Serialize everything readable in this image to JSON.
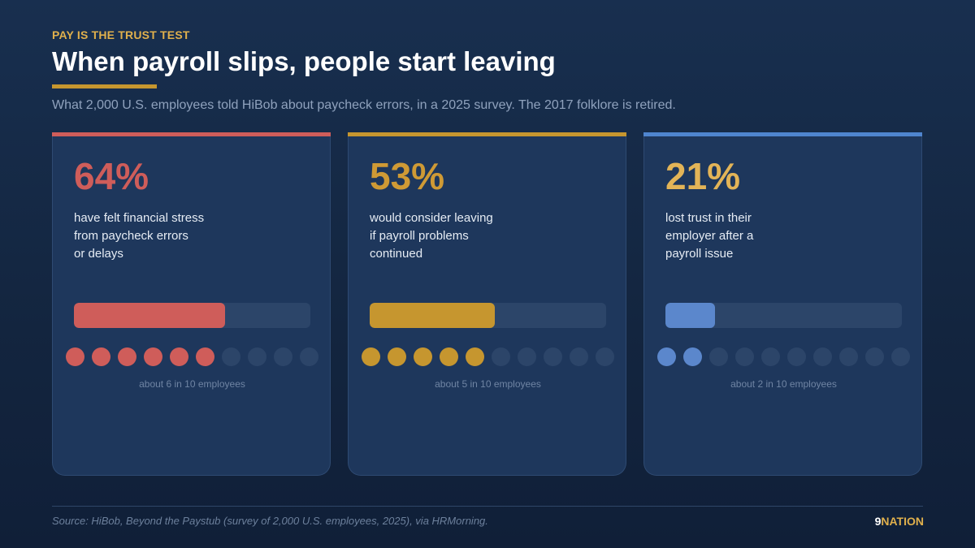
{
  "header": {
    "eyebrow": "PAY IS THE TRUST TEST",
    "title": "When payroll slips, people start leaving",
    "subtitle": "What 2,000 U.S. employees told HiBob about paycheck errors, in a 2025 survey. The 2017 folklore is retired."
  },
  "colors": {
    "background": "#152a48",
    "card": "#1e375c",
    "track": "#2c4569",
    "title_rule": "#c6962f"
  },
  "chart_data": {
    "type": "bar",
    "categories": [
      "have felt financial stress from paycheck errors or delays",
      "would consider leaving if payroll problems continued",
      "lost trust in their employer after a payroll issue"
    ],
    "values": [
      64,
      53,
      21
    ],
    "unit": "%",
    "ylim": [
      0,
      100
    ],
    "dots_filled_out_of_10": [
      6,
      5,
      2
    ]
  },
  "cards": [
    {
      "value": "64%",
      "percent": 64,
      "desc_lines": [
        "have felt financial stress",
        "from paycheck errors",
        "or delays"
      ],
      "dots_filled": 6,
      "dots_total": 10,
      "caption": "about 6 in 10 employees",
      "accent_color": "#cf5d5a",
      "value_color": "#cf5d5a",
      "fill_color": "#cf5d5a"
    },
    {
      "value": "53%",
      "percent": 53,
      "desc_lines": [
        "would consider leaving",
        "if payroll problems",
        "continued"
      ],
      "dots_filled": 5,
      "dots_total": 10,
      "caption": "about 5 in 10 employees",
      "accent_color": "#c6962f",
      "value_color": "#cf9a35",
      "fill_color": "#c6962f"
    },
    {
      "value": "21%",
      "percent": 21,
      "desc_lines": [
        "lost trust in their",
        "employer after a",
        "payroll issue"
      ],
      "dots_filled": 2,
      "dots_total": 10,
      "caption": "about 2 in 10 employees",
      "accent_color": "#4f85cf",
      "value_color": "#e3b457",
      "fill_color": "#5b87cc"
    }
  ],
  "footer": {
    "source": "Source: HiBob, Beyond the Paystub (survey of 2,000 U.S. employees, 2025), via HRMorning.",
    "brand_number": "9",
    "brand_name": "NATION"
  }
}
